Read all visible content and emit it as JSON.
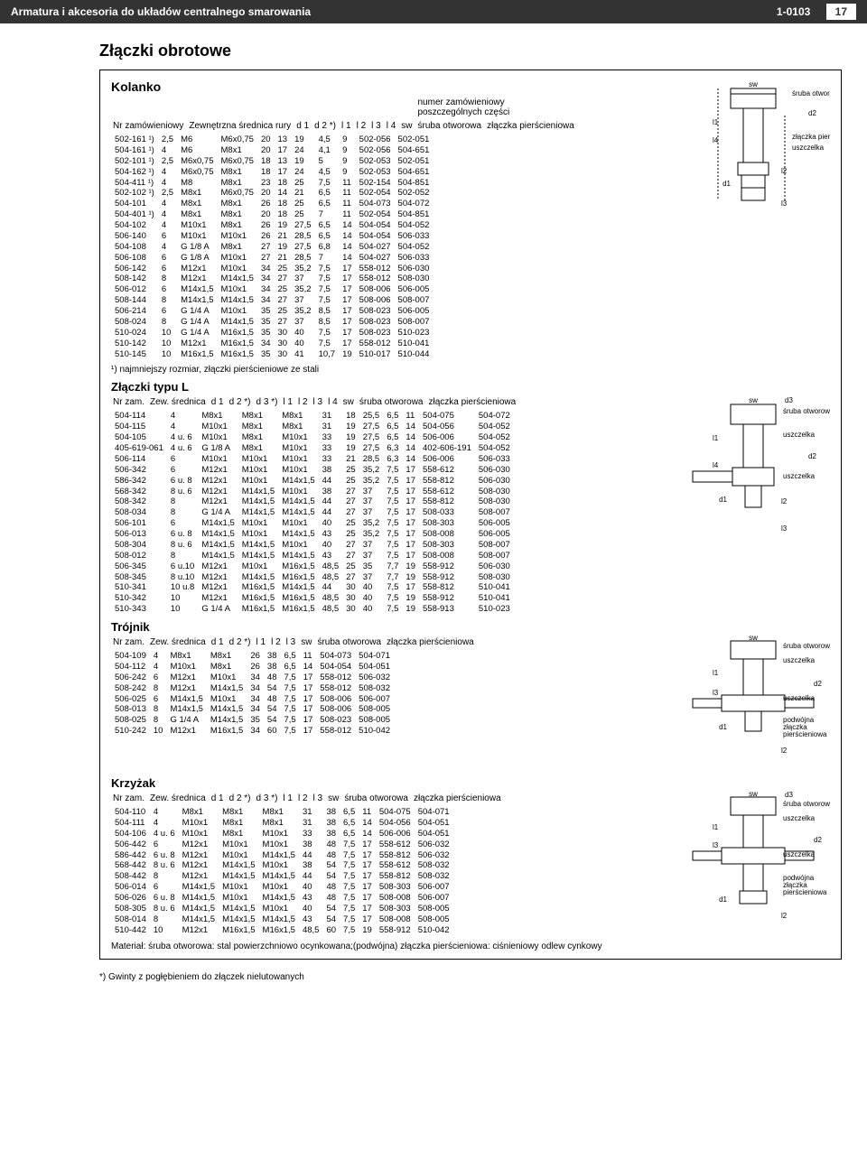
{
  "topbar": {
    "left": "Armatura i akcesoria do układów centralnego smarowania",
    "code": "1-0103",
    "page": "17"
  },
  "title": "Złączki obrotowe",
  "kolanko": {
    "title": "Kolanko",
    "upper": "numer zamówieniowy\nposzczególnych części",
    "hdr": [
      "Nr zamówieniowy",
      "Zewnętrzna średnica rury",
      "d 1",
      "d 2 *)",
      "l 1",
      "l 2",
      "l 3",
      "l 4",
      "sw",
      "śruba otworowa",
      "złączka pierścieniowa"
    ],
    "rows": [
      [
        "502-161 ¹)",
        "2,5",
        "M6",
        "M6x0,75",
        "20",
        "13",
        "19",
        "4,5",
        "9",
        "502-056",
        "502-051"
      ],
      [
        "504-161 ¹)",
        "4",
        "M6",
        "M8x1",
        "20",
        "17",
        "24",
        "4,1",
        "9",
        "502-056",
        "504-651"
      ],
      [
        "502-101 ¹)",
        "2,5",
        "M6x0,75",
        "M6x0,75",
        "18",
        "13",
        "19",
        "5",
        "9",
        "502-053",
        "502-051"
      ],
      [
        "504-162 ¹)",
        "4",
        "M6x0,75",
        "M8x1",
        "18",
        "17",
        "24",
        "4,5",
        "9",
        "502-053",
        "504-651"
      ],
      [
        "504-411 ¹)",
        "4",
        "M8",
        "M8x1",
        "23",
        "18",
        "25",
        "7,5",
        "11",
        "502-154",
        "504-851"
      ],
      [
        "502-102 ¹)",
        "2,5",
        "M8x1",
        "M6x0,75",
        "20",
        "14",
        "21",
        "6,5",
        "11",
        "502-054",
        "502-052"
      ],
      [
        "504-101",
        "4",
        "M8x1",
        "M8x1",
        "26",
        "18",
        "25",
        "6,5",
        "11",
        "504-073",
        "504-072"
      ],
      [
        "504-401 ¹)",
        "4",
        "M8x1",
        "M8x1",
        "20",
        "18",
        "25",
        "7",
        "11",
        "502-054",
        "504-851"
      ],
      [
        "504-102",
        "4",
        "M10x1",
        "M8x1",
        "26",
        "19",
        "27,5",
        "6,5",
        "14",
        "504-054",
        "504-052"
      ],
      [
        "506-140",
        "6",
        "M10x1",
        "M10x1",
        "26",
        "21",
        "28,5",
        "6,5",
        "14",
        "504-054",
        "506-033"
      ],
      [
        "504-108",
        "4",
        "G 1/8 A",
        "M8x1",
        "27",
        "19",
        "27,5",
        "6,8",
        "14",
        "504-027",
        "504-052"
      ],
      [
        "506-108",
        "6",
        "G 1/8 A",
        "M10x1",
        "27",
        "21",
        "28,5",
        "7",
        "14",
        "504-027",
        "506-033"
      ],
      [
        "506-142",
        "6",
        "M12x1",
        "M10x1",
        "34",
        "25",
        "35,2",
        "7,5",
        "17",
        "558-012",
        "506-030"
      ],
      [
        "508-142",
        "8",
        "M12x1",
        "M14x1,5",
        "34",
        "27",
        "37",
        "7,5",
        "17",
        "558-012",
        "508-030"
      ],
      [
        "506-012",
        "6",
        "M14x1,5",
        "M10x1",
        "34",
        "25",
        "35,2",
        "7,5",
        "17",
        "508-006",
        "506-005"
      ],
      [
        "508-144",
        "8",
        "M14x1,5",
        "M14x1,5",
        "34",
        "27",
        "37",
        "7,5",
        "17",
        "508-006",
        "508-007"
      ],
      [
        "506-214",
        "6",
        "G 1/4 A",
        "M10x1",
        "35",
        "25",
        "35,2",
        "8,5",
        "17",
        "508-023",
        "506-005"
      ],
      [
        "508-024",
        "8",
        "G 1/4 A",
        "M14x1,5",
        "35",
        "27",
        "37",
        "8,5",
        "17",
        "508-023",
        "508-007"
      ],
      [
        "510-024",
        "10",
        "G 1/4 A",
        "M16x1,5",
        "35",
        "30",
        "40",
        "7,5",
        "17",
        "508-023",
        "510-023"
      ],
      [
        "510-142",
        "10",
        "M12x1",
        "M16x1,5",
        "34",
        "30",
        "40",
        "7,5",
        "17",
        "558-012",
        "510-041"
      ],
      [
        "510-145",
        "10",
        "M16x1,5",
        "M16x1,5",
        "35",
        "30",
        "41",
        "10,7",
        "19",
        "510-017",
        "510-044"
      ]
    ],
    "note": "¹) najmniejszy rozmiar, złączki pierścieniowe ze stali",
    "fig_labels": [
      "sw",
      "śruba otworowa",
      "złączka pierścieniowa",
      "uszczelka",
      "d1",
      "d2",
      "l1",
      "l2",
      "l3",
      "l4"
    ]
  },
  "typeL": {
    "title": "Złączki typu L",
    "hdr": [
      "Nr zam.",
      "Zew. średnica",
      "d 1",
      "d 2 *)",
      "d 3 *)",
      "l 1",
      "l 2",
      "l 3",
      "l 4",
      "sw",
      "śruba otworowa",
      "złączka pierścieniowa"
    ],
    "rows": [
      [
        "504-114",
        "4",
        "M8x1",
        "M8x1",
        "M8x1",
        "31",
        "18",
        "25,5",
        "6,5",
        "11",
        "504-075",
        "504-072"
      ],
      [
        "504-115",
        "4",
        "M10x1",
        "M8x1",
        "M8x1",
        "31",
        "19",
        "27,5",
        "6,5",
        "14",
        "504-056",
        "504-052"
      ],
      [
        "504-105",
        "4 u. 6",
        "M10x1",
        "M8x1",
        "M10x1",
        "33",
        "19",
        "27,5",
        "6,5",
        "14",
        "506-006",
        "504-052"
      ],
      [
        "405-619-061",
        "4 u. 6",
        "G 1/8 A",
        "M8x1",
        "M10x1",
        "33",
        "19",
        "27,5",
        "6,3",
        "14",
        "402-606-191",
        "504-052"
      ],
      [
        "506-114",
        "6",
        "M10x1",
        "M10x1",
        "M10x1",
        "33",
        "21",
        "28,5",
        "6,3",
        "14",
        "506-006",
        "506-033"
      ],
      [
        "506-342",
        "6",
        "M12x1",
        "M10x1",
        "M10x1",
        "38",
        "25",
        "35,2",
        "7,5",
        "17",
        "558-612",
        "506-030"
      ],
      [
        "586-342",
        "6 u. 8",
        "M12x1",
        "M10x1",
        "M14x1,5",
        "44",
        "25",
        "35,2",
        "7,5",
        "17",
        "558-812",
        "506-030"
      ],
      [
        "568-342",
        "8 u. 6",
        "M12x1",
        "M14x1,5",
        "M10x1",
        "38",
        "27",
        "37",
        "7,5",
        "17",
        "558-612",
        "508-030"
      ],
      [
        "508-342",
        "8",
        "M12x1",
        "M14x1,5",
        "M14x1,5",
        "44",
        "27",
        "37",
        "7,5",
        "17",
        "558-812",
        "508-030"
      ],
      [
        "508-034",
        "8",
        "G 1/4 A",
        "M14x1,5",
        "M14x1,5",
        "44",
        "27",
        "37",
        "7,5",
        "17",
        "508-033",
        "508-007"
      ],
      [
        "506-101",
        "6",
        "M14x1,5",
        "M10x1",
        "M10x1",
        "40",
        "25",
        "35,2",
        "7,5",
        "17",
        "508-303",
        "506-005"
      ],
      [
        "506-013",
        "6 u. 8",
        "M14x1,5",
        "M10x1",
        "M14x1,5",
        "43",
        "25",
        "35,2",
        "7,5",
        "17",
        "508-008",
        "506-005"
      ],
      [
        "508-304",
        "8 u. 6",
        "M14x1,5",
        "M14x1,5",
        "M10x1",
        "40",
        "27",
        "37",
        "7,5",
        "17",
        "508-303",
        "508-007"
      ],
      [
        "508-012",
        "8",
        "M14x1,5",
        "M14x1,5",
        "M14x1,5",
        "43",
        "27",
        "37",
        "7,5",
        "17",
        "508-008",
        "508-007"
      ],
      [
        "506-345",
        "6 u.10",
        "M12x1",
        "M10x1",
        "M16x1,5",
        "48,5",
        "25",
        "35",
        "7,7",
        "19",
        "558-912",
        "506-030"
      ],
      [
        "508-345",
        "8 u.10",
        "M12x1",
        "M14x1,5",
        "M16x1,5",
        "48,5",
        "27",
        "37",
        "7,7",
        "19",
        "558-912",
        "508-030"
      ],
      [
        "510-341",
        "10 u.8",
        "M12x1",
        "M16x1,5",
        "M14x1,5",
        "44",
        "30",
        "40",
        "7,5",
        "17",
        "558-812",
        "510-041"
      ],
      [
        "510-342",
        "10",
        "M12x1",
        "M16x1,5",
        "M16x1,5",
        "48,5",
        "30",
        "40",
        "7,5",
        "19",
        "558-912",
        "510-041"
      ],
      [
        "510-343",
        "10",
        "G 1/4 A",
        "M16x1,5",
        "M16x1,5",
        "48,5",
        "30",
        "40",
        "7,5",
        "19",
        "558-913",
        "510-023"
      ]
    ],
    "fig_labels": [
      "d3",
      "sw",
      "śruba otworowa",
      "uszczelka",
      "d2",
      "uszczelka",
      "d1",
      "l1",
      "l2",
      "l3",
      "l4"
    ]
  },
  "trojnik": {
    "title": "Trójnik",
    "hdr": [
      "Nr zam.",
      "Zew. średnica",
      "d 1",
      "d 2 *)",
      "l 1",
      "l 2",
      "l 3",
      "sw",
      "śruba otworowa",
      "złączka pierścieniowa"
    ],
    "rows": [
      [
        "504-109",
        "4",
        "M8x1",
        "M8x1",
        "26",
        "38",
        "6,5",
        "11",
        "504-073",
        "504-071"
      ],
      [
        "504-112",
        "4",
        "M10x1",
        "M8x1",
        "26",
        "38",
        "6,5",
        "14",
        "504-054",
        "504-051"
      ],
      [
        "506-242",
        "6",
        "M12x1",
        "M10x1",
        "34",
        "48",
        "7,5",
        "17",
        "558-012",
        "506-032"
      ],
      [
        "508-242",
        "8",
        "M12x1",
        "M14x1,5",
        "34",
        "54",
        "7,5",
        "17",
        "558-012",
        "508-032"
      ],
      [
        "506-025",
        "6",
        "M14x1,5",
        "M10x1",
        "34",
        "48",
        "7,5",
        "17",
        "508-006",
        "506-007"
      ],
      [
        "508-013",
        "8",
        "M14x1,5",
        "M14x1,5",
        "34",
        "54",
        "7,5",
        "17",
        "508-006",
        "508-005"
      ],
      [
        "508-025",
        "8",
        "G 1/4 A",
        "M14x1,5",
        "35",
        "54",
        "7,5",
        "17",
        "508-023",
        "508-005"
      ],
      [
        "510-242",
        "10",
        "M12x1",
        "M16x1,5",
        "34",
        "60",
        "7,5",
        "17",
        "558-012",
        "510-042"
      ]
    ],
    "fig_labels": [
      "sw",
      "śruba otworowa",
      "uszczelka",
      "d2",
      "uszczelka",
      "podwójna złączka pierścieniowa",
      "d1",
      "l1",
      "l2",
      "l3"
    ]
  },
  "krzyzak": {
    "title": "Krzyżak",
    "hdr": [
      "Nr zam.",
      "Zew. średnica",
      "d 1",
      "d 2 *)",
      "d 3 *)",
      "l 1",
      "l 2",
      "l 3",
      "sw",
      "śruba otworowa",
      "złączka pierścieniowa"
    ],
    "rows": [
      [
        "504-110",
        "4",
        "M8x1",
        "M8x1",
        "M8x1",
        "31",
        "38",
        "6,5",
        "11",
        "504-075",
        "504-071"
      ],
      [
        "504-111",
        "4",
        "M10x1",
        "M8x1",
        "M8x1",
        "31",
        "38",
        "6,5",
        "14",
        "504-056",
        "504-051"
      ],
      [
        "504-106",
        "4 u. 6",
        "M10x1",
        "M8x1",
        "M10x1",
        "33",
        "38",
        "6,5",
        "14",
        "506-006",
        "504-051"
      ],
      [
        "506-442",
        "6",
        "M12x1",
        "M10x1",
        "M10x1",
        "38",
        "48",
        "7,5",
        "17",
        "558-612",
        "506-032"
      ],
      [
        "586-442",
        "6 u. 8",
        "M12x1",
        "M10x1",
        "M14x1,5",
        "44",
        "48",
        "7,5",
        "17",
        "558-812",
        "506-032"
      ],
      [
        "568-442",
        "8 u. 6",
        "M12x1",
        "M14x1,5",
        "M10x1",
        "38",
        "54",
        "7,5",
        "17",
        "558-612",
        "508-032"
      ],
      [
        "508-442",
        "8",
        "M12x1",
        "M14x1,5",
        "M14x1,5",
        "44",
        "54",
        "7,5",
        "17",
        "558-812",
        "508-032"
      ],
      [
        "506-014",
        "6",
        "M14x1,5",
        "M10x1",
        "M10x1",
        "40",
        "48",
        "7,5",
        "17",
        "508-303",
        "506-007"
      ],
      [
        "506-026",
        "6 u. 8",
        "M14x1,5",
        "M10x1",
        "M14x1,5",
        "43",
        "48",
        "7,5",
        "17",
        "508-008",
        "506-007"
      ],
      [
        "508-305",
        "8 u. 6",
        "M14x1,5",
        "M14x1,5",
        "M10x1",
        "40",
        "54",
        "7,5",
        "17",
        "508-303",
        "508-005"
      ],
      [
        "508-014",
        "8",
        "M14x1,5",
        "M14x1,5",
        "M14x1,5",
        "43",
        "54",
        "7,5",
        "17",
        "508-008",
        "508-005"
      ],
      [
        "510-442",
        "10",
        "M12x1",
        "M16x1,5",
        "M16x1,5",
        "48,5",
        "60",
        "7,5",
        "19",
        "558-912",
        "510-042"
      ]
    ],
    "fig_labels": [
      "d3",
      "sw",
      "śruba otworowa",
      "uszczelka",
      "d2",
      "uszczelka",
      "podwójna złączka pierścieniowa",
      "d1",
      "l1",
      "l2",
      "l3"
    ],
    "material": "Materiał: śruba otworowa: stal powierzchniowo ocynkowana;(podwójna) złączka pierścieniowa: ciśnieniowy odlew cynkowy"
  },
  "footnote": "*) Gwinty z pogłębieniem do złączek nielutowanych"
}
